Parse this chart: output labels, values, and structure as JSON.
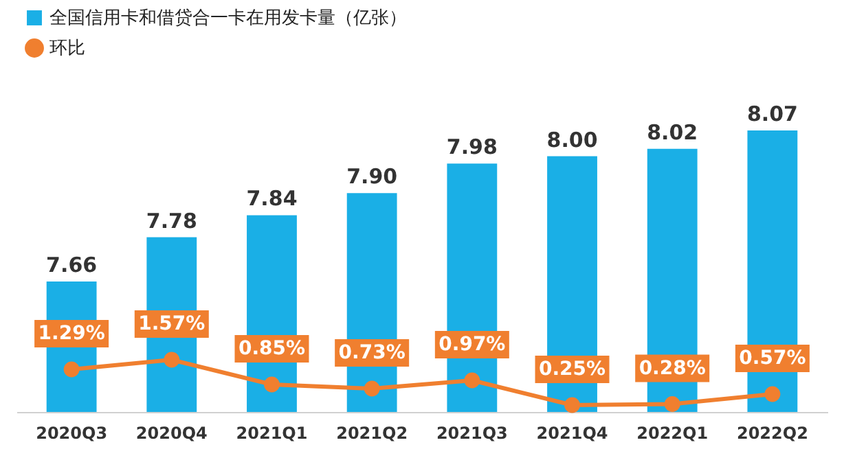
{
  "chart_data": {
    "type": "bar",
    "categories": [
      "2020Q3",
      "2020Q4",
      "2021Q1",
      "2021Q2",
      "2021Q3",
      "2021Q4",
      "2022Q1",
      "2022Q2"
    ],
    "series": [
      {
        "name": "全国信用卡和借贷合一卡在用发卡量（亿张）",
        "color": "#1aafe6",
        "values": [
          7.66,
          7.78,
          7.84,
          7.9,
          7.98,
          8.0,
          8.02,
          8.07
        ],
        "value_labels": [
          "7.66",
          "7.78",
          "7.84",
          "7.90",
          "7.98",
          "8.00",
          "8.02",
          "8.07"
        ]
      },
      {
        "name": "环比",
        "type": "line",
        "axis": "y2",
        "marker": "circle",
        "color": "#f07f2f",
        "values": [
          1.29,
          1.57,
          0.85,
          0.73,
          0.97,
          0.25,
          0.28,
          0.57
        ],
        "value_labels": [
          "1.29%",
          "1.57%",
          "0.85%",
          "0.73%",
          "0.97%",
          "0.25%",
          "0.28%",
          "0.57%"
        ]
      }
    ],
    "tick_labels": "x",
    "legend": "top left"
  }
}
